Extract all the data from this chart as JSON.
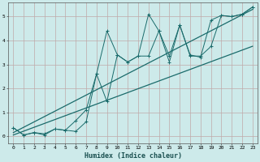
{
  "xlabel": "Humidex (Indice chaleur)",
  "ylabel": "",
  "xlim": [
    -0.5,
    23.5
  ],
  "ylim": [
    -0.3,
    5.6
  ],
  "xticks": [
    0,
    1,
    2,
    3,
    4,
    5,
    6,
    7,
    8,
    9,
    10,
    11,
    12,
    13,
    14,
    15,
    16,
    17,
    18,
    19,
    20,
    21,
    22,
    23
  ],
  "yticks": [
    0,
    1,
    2,
    3,
    4,
    5
  ],
  "bg_color": "#cdeaea",
  "grid_color": "#c0a8a8",
  "line_color": "#1a6b6b",
  "series1_x": [
    0,
    1,
    2,
    3,
    4,
    5,
    6,
    7,
    8,
    9,
    10,
    11,
    12,
    13,
    14,
    15,
    16,
    17,
    18,
    19,
    20,
    21,
    22,
    23
  ],
  "series1_y": [
    0.35,
    0.05,
    0.15,
    0.05,
    0.3,
    0.25,
    0.2,
    0.6,
    2.6,
    4.4,
    3.4,
    3.1,
    3.35,
    5.1,
    4.4,
    3.35,
    4.65,
    3.4,
    3.3,
    4.85,
    5.05,
    5.0,
    5.1,
    5.4
  ],
  "series2_x": [
    0,
    1,
    2,
    3,
    4,
    5,
    6,
    7,
    8,
    9,
    10,
    11,
    12,
    13,
    14,
    15,
    16,
    17,
    18,
    19,
    20,
    21,
    22,
    23
  ],
  "series2_y": [
    0.35,
    0.05,
    0.15,
    0.1,
    0.3,
    0.25,
    0.65,
    1.1,
    2.6,
    1.45,
    3.4,
    3.1,
    3.35,
    3.35,
    4.4,
    3.1,
    4.65,
    3.35,
    3.35,
    3.75,
    5.05,
    5.0,
    5.1,
    5.4
  ],
  "line1_x": [
    0,
    23
  ],
  "line1_y": [
    0.05,
    3.76
  ],
  "line2_x": [
    0,
    23
  ],
  "line2_y": [
    0.15,
    5.3
  ]
}
